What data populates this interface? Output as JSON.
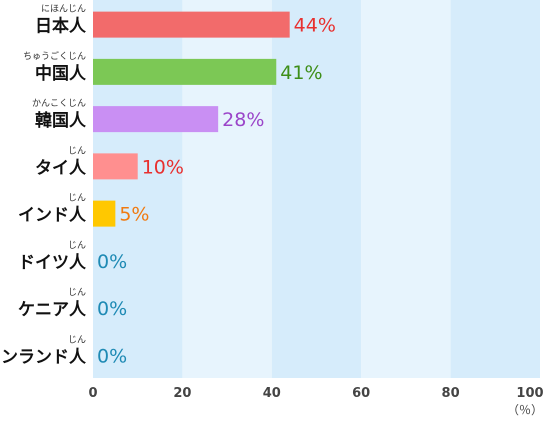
{
  "chart_data": {
    "type": "bar",
    "orientation": "horizontal",
    "categories": [
      "日本人",
      "中国人",
      "韓国人",
      "タイ人",
      "インド人",
      "ドイツ人",
      "ケニア人",
      "フィンランド人"
    ],
    "furigana": [
      "にほんじん",
      "ちゅうごくじん",
      "かんこくじん",
      "じん",
      "じん",
      "じん",
      "じん",
      "じん"
    ],
    "values": [
      44,
      41,
      28,
      10,
      5,
      0,
      0,
      0
    ],
    "value_labels": [
      "44%",
      "41%",
      "28%",
      "10%",
      "5%",
      "0%",
      "0%",
      "0%"
    ],
    "bar_colors": [
      "#f26b6b",
      "#7cc855",
      "#c98ff3",
      "#ff8f8f",
      "#ffc800",
      "#1e8ab4",
      "#1e8ab4",
      "#1e8ab4"
    ],
    "label_colors": [
      "#e8302f",
      "#3e8e18",
      "#9b45c9",
      "#e8302f",
      "#f07a10",
      "#1e8ab4",
      "#1e8ab4",
      "#1e8ab4"
    ],
    "xlim": [
      0,
      100
    ],
    "xticks": [
      "0",
      "20",
      "40",
      "60",
      "80",
      "100"
    ],
    "xunit": "（％）",
    "band_colors": [
      "#d6ecfb",
      "#e7f4fd"
    ]
  }
}
